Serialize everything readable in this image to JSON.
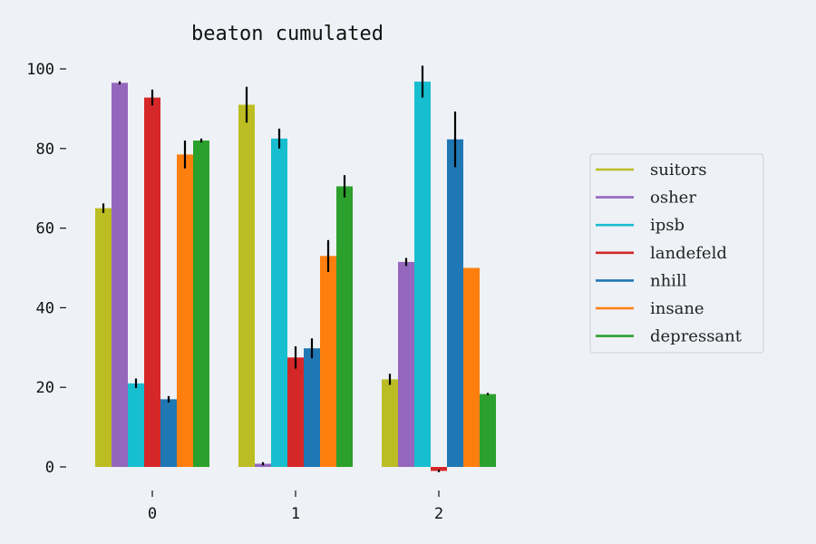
{
  "chart_data": {
    "type": "bar",
    "title": "beaton cumulated",
    "xlabel": "",
    "ylabel": "",
    "categories": [
      "0",
      "1",
      "2"
    ],
    "ylim": [
      -1.5,
      101
    ],
    "yticks": [
      0,
      20,
      40,
      60,
      80,
      100
    ],
    "grid": false,
    "legend_position": "right",
    "series": [
      {
        "name": "suitors",
        "color": "#bcbd22",
        "values": [
          65.0,
          91.0,
          22.0
        ],
        "errors": [
          1.2,
          4.5,
          1.4
        ]
      },
      {
        "name": "osher",
        "color": "#9467bd",
        "values": [
          96.5,
          0.8,
          51.5
        ],
        "errors": [
          0.4,
          0.4,
          1.0
        ]
      },
      {
        "name": "ipsb",
        "color": "#17becf",
        "values": [
          21.0,
          82.5,
          96.8
        ],
        "errors": [
          1.2,
          2.5,
          4.0
        ]
      },
      {
        "name": "landefeld",
        "color": "#d62728",
        "values": [
          92.8,
          27.5,
          -1.0
        ],
        "errors": [
          2.0,
          2.8,
          0.3
        ]
      },
      {
        "name": "nhill",
        "color": "#1f77b4",
        "values": [
          17.0,
          29.8,
          82.3
        ],
        "errors": [
          0.8,
          2.5,
          7.0
        ]
      },
      {
        "name": "insane",
        "color": "#ff7f0e",
        "values": [
          78.5,
          53.0,
          50.0
        ],
        "errors": [
          3.5,
          4.0,
          0.0
        ]
      },
      {
        "name": "depressant",
        "color": "#2ca02c",
        "values": [
          82.0,
          70.5,
          18.3
        ],
        "errors": [
          0.5,
          2.8,
          0.3
        ]
      }
    ]
  }
}
